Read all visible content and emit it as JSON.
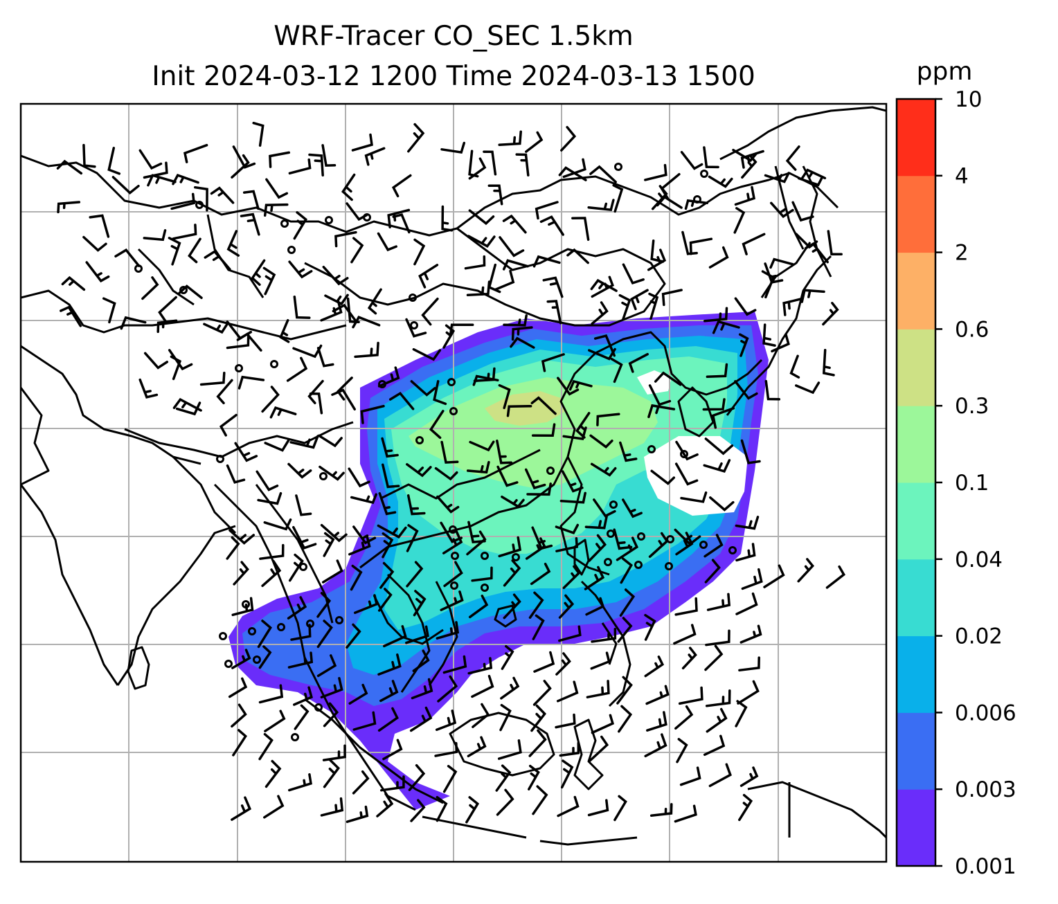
{
  "title_line1": "WRF-Tracer CO_SEC 1.5km",
  "title_line2": "Init 2024-03-12 1200 Time 2024-03-13 1500",
  "colorbar": {
    "unit": "ppm",
    "levels": [
      "0.001",
      "0.003",
      "0.006",
      "0.02",
      "0.04",
      "0.1",
      "0.3",
      "0.6",
      "2",
      "4",
      "10"
    ],
    "colors": [
      "#6a2dfa",
      "#3a6ef3",
      "#09b0ea",
      "#38dcd2",
      "#6cf4bd",
      "#9cf79a",
      "#cde185",
      "#fdb066",
      "#ff6e3a",
      "#ff2e1a"
    ]
  },
  "map": {
    "grid_lines": 7,
    "plume_colors_order": "low-to-high"
  }
}
